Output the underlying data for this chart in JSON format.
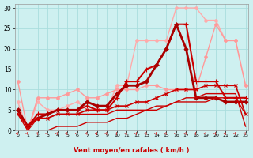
{
  "xlabel": "Vent moyen/en rafales ( km/h )",
  "bg_color": "#cef0f0",
  "grid_color": "#aadddd",
  "xlim": [
    -0.3,
    23.3
  ],
  "ylim": [
    0,
    31
  ],
  "yticks": [
    0,
    5,
    10,
    15,
    20,
    25,
    30
  ],
  "xticks": [
    0,
    1,
    2,
    3,
    4,
    5,
    6,
    7,
    8,
    9,
    10,
    11,
    12,
    13,
    14,
    15,
    16,
    17,
    18,
    19,
    20,
    21,
    22,
    23
  ],
  "lines": [
    {
      "x": [
        0,
        1,
        2,
        3,
        4,
        5,
        6,
        7,
        8,
        9,
        10,
        11,
        12,
        13,
        14,
        15,
        16,
        17,
        18,
        19,
        20,
        21,
        22,
        23
      ],
      "y": [
        7,
        0,
        7,
        5,
        5,
        6,
        7,
        5,
        5,
        5,
        11,
        11,
        22,
        22,
        22,
        22,
        30,
        30,
        30,
        27,
        27,
        22,
        22,
        11
      ],
      "color": "#ffaaaa",
      "lw": 1.0,
      "marker": "o",
      "ms": 2.5
    },
    {
      "x": [
        0,
        1,
        2,
        3,
        4,
        5,
        6,
        7,
        8,
        9,
        10,
        11,
        12,
        13,
        14,
        15,
        16,
        17,
        18,
        19,
        20,
        21,
        22,
        23
      ],
      "y": [
        12,
        0,
        8,
        8,
        8,
        9,
        10,
        8,
        8,
        9,
        10,
        10,
        10,
        11,
        11,
        10,
        10,
        10,
        10,
        18,
        26,
        22,
        22,
        11
      ],
      "color": "#ff9999",
      "lw": 1.0,
      "marker": "o",
      "ms": 2.5
    },
    {
      "x": [
        0,
        1,
        2,
        3,
        4,
        5,
        6,
        7,
        8,
        9,
        10,
        11,
        12,
        13,
        14,
        15,
        16,
        17,
        18,
        19,
        20,
        21,
        22,
        23
      ],
      "y": [
        5,
        1,
        4,
        4,
        5,
        5,
        5,
        6,
        5,
        5,
        8,
        12,
        12,
        15,
        16,
        20,
        26,
        26,
        12,
        12,
        12,
        8,
        8,
        8
      ],
      "color": "#cc0000",
      "lw": 1.5,
      "marker": "+",
      "ms": 4
    },
    {
      "x": [
        0,
        1,
        2,
        3,
        4,
        5,
        6,
        7,
        8,
        9,
        10,
        11,
        12,
        13,
        14,
        15,
        16,
        17,
        18,
        19,
        20,
        21,
        22,
        23
      ],
      "y": [
        5,
        1,
        3,
        4,
        5,
        5,
        5,
        7,
        6,
        6,
        9,
        11,
        11,
        12,
        16,
        20,
        26,
        20,
        8,
        8,
        8,
        7,
        7,
        7
      ],
      "color": "#aa0000",
      "lw": 2.0,
      "marker": "D",
      "ms": 2.5
    },
    {
      "x": [
        0,
        1,
        2,
        3,
        4,
        5,
        6,
        7,
        8,
        9,
        10,
        11,
        12,
        13,
        14,
        15,
        16,
        17,
        18,
        19,
        20,
        21,
        22,
        23
      ],
      "y": [
        4,
        1,
        3,
        3,
        4,
        4,
        4,
        5,
        5,
        5,
        6,
        6,
        7,
        7,
        8,
        9,
        10,
        10,
        10,
        11,
        11,
        11,
        11,
        4
      ],
      "color": "#cc0000",
      "lw": 1.2,
      "marker": "x",
      "ms": 3.5
    },
    {
      "x": [
        0,
        1,
        2,
        3,
        4,
        5,
        6,
        7,
        8,
        9,
        10,
        11,
        12,
        13,
        14,
        15,
        16,
        17,
        18,
        19,
        20,
        21,
        22,
        23
      ],
      "y": [
        0,
        0,
        0,
        0,
        1,
        1,
        1,
        2,
        2,
        2,
        3,
        3,
        4,
        5,
        5,
        6,
        7,
        8,
        8,
        9,
        9,
        9,
        9,
        1
      ],
      "color": "#cc0000",
      "lw": 1.0,
      "marker": null,
      "ms": 0
    },
    {
      "x": [
        0,
        1,
        2,
        3,
        4,
        5,
        6,
        7,
        8,
        9,
        10,
        11,
        12,
        13,
        14,
        15,
        16,
        17,
        18,
        19,
        20,
        21,
        22,
        23
      ],
      "y": [
        4,
        0,
        3,
        3,
        4,
        4,
        4,
        4,
        4,
        4,
        5,
        5,
        5,
        5,
        6,
        6,
        7,
        7,
        7,
        7,
        8,
        8,
        8,
        4
      ],
      "color": "#cc0000",
      "lw": 1.0,
      "marker": null,
      "ms": 0
    }
  ],
  "arrow_color": "#cc0000",
  "xlabel_color": "#cc0000",
  "xlabel_fontsize": 6,
  "tick_fontsize_x": 4.5,
  "tick_fontsize_y": 5.5
}
